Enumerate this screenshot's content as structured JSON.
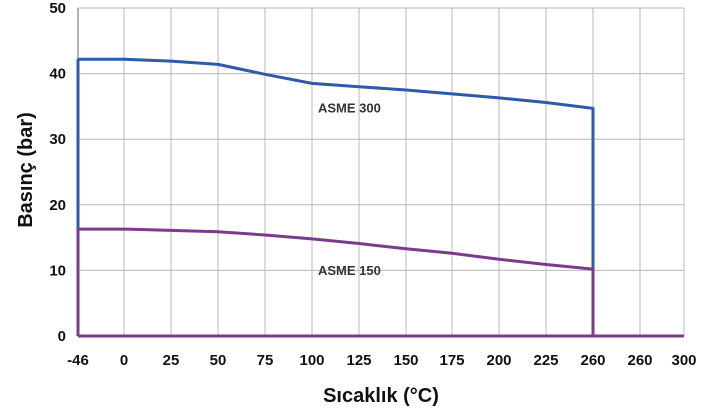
{
  "chart_data": {
    "type": "line",
    "xlabel": "Sıcaklık (°C)",
    "ylabel": "Basınç  (bar)",
    "x_tick_labels": [
      "-46",
      "0",
      "25",
      "50",
      "75",
      "100",
      "125",
      "150",
      "175",
      "200",
      "225",
      "260",
      "260",
      "300"
    ],
    "y_ticks": [
      0,
      10,
      20,
      30,
      40,
      50
    ],
    "ylim": [
      0,
      50
    ],
    "grid": true,
    "series": [
      {
        "name": "ASME 300",
        "color": "#2e5aa8",
        "x": [
          -46,
          0,
          25,
          50,
          75,
          100,
          125,
          150,
          175,
          200,
          225,
          260,
          260,
          260
        ],
        "y": [
          42.2,
          42.2,
          41.9,
          41.4,
          39.9,
          38.5,
          38.0,
          37.5,
          36.9,
          36.3,
          35.6,
          34.7,
          34.3,
          0
        ],
        "label_anchor": {
          "x": 150,
          "y": 35.3
        }
      },
      {
        "name": "ASME 150",
        "color": "#7a3b8c",
        "x": [
          -46,
          0,
          25,
          50,
          75,
          100,
          125,
          150,
          175,
          200,
          225,
          260,
          260,
          260
        ],
        "y": [
          16.3,
          16.3,
          16.1,
          15.9,
          15.4,
          14.8,
          14.1,
          13.3,
          12.6,
          11.7,
          10.9,
          10.2,
          9.8,
          0
        ],
        "label_anchor": {
          "x": 150,
          "y": 10.5
        }
      }
    ]
  }
}
